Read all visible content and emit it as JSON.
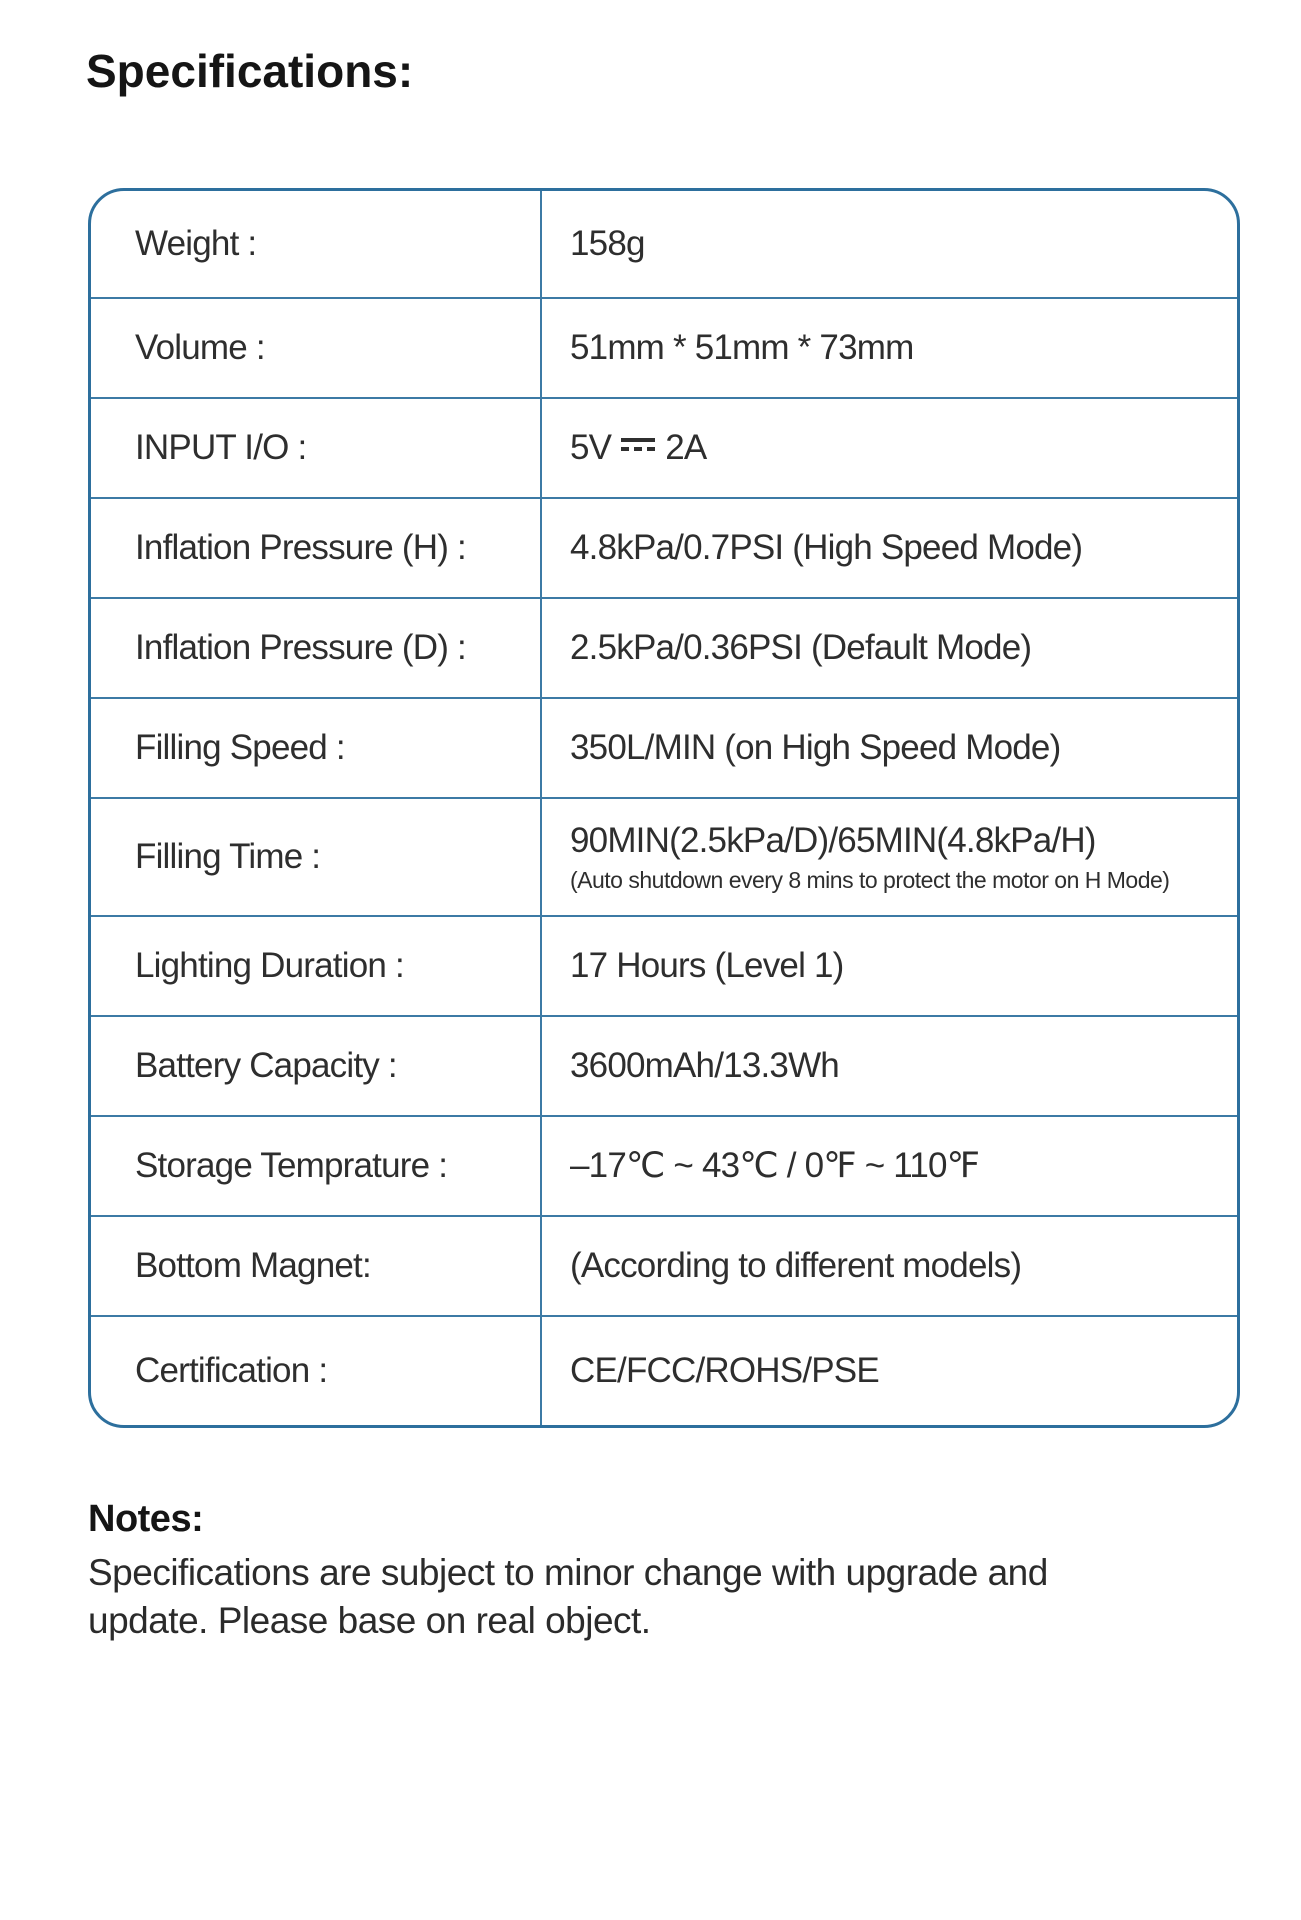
{
  "page": {
    "title": "Specifications:"
  },
  "colors": {
    "table_border": "#2d6f9d",
    "table_lines": "#3c7aa5",
    "text": "#2e2e2e"
  },
  "table": {
    "rows": [
      {
        "label": "Weight :",
        "value": "158g"
      },
      {
        "label": "Volume :",
        "value": "51mm * 51mm * 73mm"
      },
      {
        "label": "INPUT I/O :",
        "value": "5V ⎓ 2A",
        "dc_symbol": true,
        "value_before": "5V",
        "value_after": "2A"
      },
      {
        "label": "Inflation Pressure (H) :",
        "value": "4.8kPa/0.7PSI (High Speed Mode)"
      },
      {
        "label": "Inflation Pressure (D) :",
        "value": "2.5kPa/0.36PSI (Default Mode)"
      },
      {
        "label": "Filling Speed :",
        "value": "350L/MIN (on High Speed Mode)"
      },
      {
        "label": "Filling Time :",
        "value": "90MIN(2.5kPa/D)/65MIN(4.8kPa/H)",
        "note": "(Auto shutdown every 8 mins to protect the motor on H Mode)",
        "tall": true
      },
      {
        "label": "Lighting Duration :",
        "value": "17 Hours (Level 1)"
      },
      {
        "label": "Battery Capacity :",
        "value": "3600mAh/13.3Wh"
      },
      {
        "label": "Storage Temprature :",
        "value": "–17℃ ~ 43℃ / 0℉ ~ 110℉"
      },
      {
        "label": "Bottom Magnet:",
        "value": "(According to different models)"
      },
      {
        "label": "Certification :",
        "value": "CE/FCC/ROHS/PSE"
      }
    ]
  },
  "notes": {
    "heading": "Notes:",
    "lines": [
      "Specifications are subject to minor change with upgrade and",
      "update. Please base on real object."
    ]
  }
}
